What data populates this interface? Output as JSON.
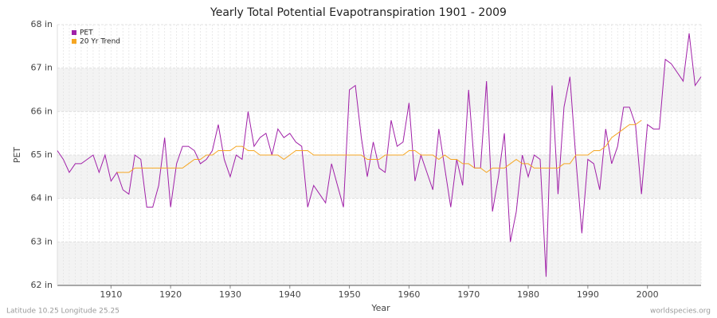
{
  "chart_data": {
    "type": "line",
    "title": "Yearly Total Potential Evapotranspiration 1901 - 2009",
    "x_label": "Year",
    "y_label": "PET",
    "footer_left": "Latitude 10.25 Longitude 25.25",
    "footer_right": "worldspecies.org",
    "legend": "top-left",
    "grid": true,
    "x": [
      1901,
      1902,
      1903,
      1904,
      1905,
      1906,
      1907,
      1908,
      1909,
      1910,
      1911,
      1912,
      1913,
      1914,
      1915,
      1916,
      1917,
      1918,
      1919,
      1920,
      1921,
      1922,
      1923,
      1924,
      1925,
      1926,
      1927,
      1928,
      1929,
      1930,
      1931,
      1932,
      1933,
      1934,
      1935,
      1936,
      1937,
      1938,
      1939,
      1940,
      1941,
      1942,
      1943,
      1944,
      1945,
      1946,
      1947,
      1948,
      1949,
      1950,
      1951,
      1952,
      1953,
      1954,
      1955,
      1956,
      1957,
      1958,
      1959,
      1960,
      1961,
      1962,
      1963,
      1964,
      1965,
      1966,
      1967,
      1968,
      1969,
      1970,
      1971,
      1972,
      1973,
      1974,
      1975,
      1976,
      1977,
      1978,
      1979,
      1980,
      1981,
      1982,
      1983,
      1984,
      1985,
      1986,
      1987,
      1988,
      1989,
      1990,
      1991,
      1992,
      1993,
      1994,
      1995,
      1996,
      1997,
      1998,
      1999,
      2000,
      2001,
      2002,
      2003,
      2004,
      2005,
      2006,
      2007,
      2008,
      2009
    ],
    "series": [
      {
        "name": "PET",
        "color": "#a020a8",
        "values": [
          65.1,
          64.9,
          64.6,
          64.8,
          64.8,
          64.9,
          65.0,
          64.6,
          65.0,
          64.4,
          64.6,
          64.2,
          64.1,
          65.0,
          64.9,
          63.8,
          63.8,
          64.3,
          65.4,
          63.8,
          64.8,
          65.2,
          65.2,
          65.1,
          64.8,
          64.9,
          65.1,
          65.7,
          64.9,
          64.5,
          65.0,
          64.9,
          66.0,
          65.2,
          65.4,
          65.5,
          65.0,
          65.6,
          65.4,
          65.5,
          65.3,
          65.2,
          63.8,
          64.3,
          64.1,
          63.9,
          64.8,
          64.3,
          63.8,
          66.5,
          66.6,
          65.4,
          64.5,
          65.3,
          64.7,
          64.6,
          65.8,
          65.2,
          65.3,
          66.2,
          64.4,
          65.0,
          64.6,
          64.2,
          65.6,
          64.7,
          63.8,
          64.9,
          64.3,
          66.5,
          64.7,
          64.7,
          66.7,
          63.7,
          64.5,
          65.5,
          63.0,
          63.7,
          65.0,
          64.5,
          65.0,
          64.9,
          62.2,
          66.6,
          64.1,
          66.1,
          66.8,
          64.9,
          63.2,
          64.9,
          64.8,
          64.2,
          65.6,
          64.8,
          65.2,
          66.1,
          66.1,
          65.7,
          64.1,
          65.7,
          65.6,
          65.6,
          67.2,
          67.1,
          66.9,
          66.7,
          67.8,
          66.6,
          66.8
        ]
      },
      {
        "name": "20 Yr Trend",
        "color": "#f5a623",
        "values": [
          null,
          null,
          null,
          null,
          null,
          null,
          null,
          null,
          null,
          null,
          64.6,
          64.6,
          64.6,
          64.7,
          64.7,
          64.7,
          64.7,
          64.7,
          64.7,
          64.7,
          64.7,
          64.7,
          64.8,
          64.9,
          64.9,
          65.0,
          65.0,
          65.1,
          65.1,
          65.1,
          65.2,
          65.2,
          65.1,
          65.1,
          65.0,
          65.0,
          65.0,
          65.0,
          64.9,
          65.0,
          65.1,
          65.1,
          65.1,
          65.0,
          65.0,
          65.0,
          65.0,
          65.0,
          65.0,
          65.0,
          65.0,
          65.0,
          64.9,
          64.9,
          64.9,
          65.0,
          65.0,
          65.0,
          65.0,
          65.1,
          65.1,
          65.0,
          65.0,
          65.0,
          64.9,
          65.0,
          64.9,
          64.9,
          64.8,
          64.8,
          64.7,
          64.7,
          64.6,
          64.7,
          64.7,
          64.7,
          64.8,
          64.9,
          64.8,
          64.8,
          64.7,
          64.7,
          64.7,
          64.7,
          64.7,
          64.8,
          64.8,
          65.0,
          65.0,
          65.0,
          65.1,
          65.1,
          65.2,
          65.4,
          65.5,
          65.6,
          65.7,
          65.7,
          65.8,
          null,
          null,
          null,
          null,
          null,
          null,
          null,
          null,
          null,
          null
        ]
      }
    ],
    "xlim": [
      1901,
      2009
    ],
    "xticks": [
      1910,
      1920,
      1930,
      1940,
      1950,
      1960,
      1970,
      1980,
      1990,
      2000
    ],
    "ylim": [
      62,
      68
    ],
    "yticks": [
      {
        "value": 62,
        "label": "62 in"
      },
      {
        "value": 63,
        "label": "63 in"
      },
      {
        "value": 64,
        "label": "64 in"
      },
      {
        "value": 65,
        "label": "65 in"
      },
      {
        "value": 66,
        "label": "66 in"
      },
      {
        "value": 67,
        "label": "67 in"
      },
      {
        "value": 68,
        "label": "68 in"
      }
    ]
  }
}
